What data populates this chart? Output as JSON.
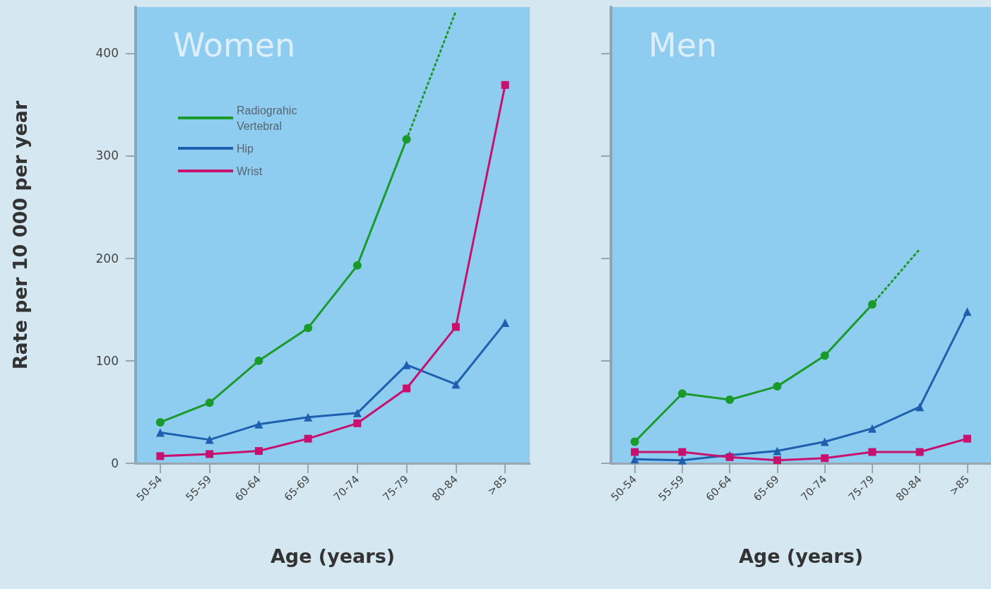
{
  "chart_data": [
    {
      "type": "line",
      "title": "Women",
      "xlabel": "Age (years)",
      "ylabel": "Rate per 10 000 per year",
      "categories": [
        "50-54",
        "55-59",
        "60-64",
        "65-69",
        "70-74",
        "75-79",
        "80-84",
        ">85"
      ],
      "ylim": [
        0,
        445
      ],
      "yticks": [
        0,
        100,
        200,
        300,
        400
      ],
      "grid": false,
      "legend": "top left",
      "line_style": "solid",
      "series": [
        {
          "name": "Radiograhic Vertebral",
          "color": "#1a9a2a",
          "marker": "circle",
          "values": [
            40,
            59,
            100,
            132,
            193,
            316,
            null,
            null
          ]
        },
        {
          "name": "Hip",
          "color": "#1f5fb0",
          "marker": "triangle",
          "values": [
            30,
            23,
            38,
            45,
            49,
            96,
            77,
            137
          ]
        },
        {
          "name": "Wrist",
          "color": "#c8106e",
          "marker": "square",
          "values": [
            7,
            9,
            12,
            24,
            39,
            73,
            133,
            369
          ]
        },
        {
          "color": "#1a9a2a",
          "line_style": "dotted",
          "values": [
            null,
            null,
            null,
            null,
            null,
            316,
            441,
            null
          ]
        }
      ]
    },
    {
      "type": "line",
      "title": "Men",
      "xlabel": "Age (years)",
      "categories": [
        "50-54",
        "55-59",
        "60-64",
        "65-69",
        "70-74",
        "75-79",
        "80-84",
        ">85"
      ],
      "ylim": [
        0,
        445
      ],
      "yticks": [
        {
          "value": 0,
          "label": null
        },
        {
          "value": 100,
          "label": null
        },
        {
          "value": 200,
          "label": null
        },
        {
          "value": 300,
          "label": null
        },
        {
          "value": 400,
          "label": null
        }
      ],
      "grid": false,
      "legend": false,
      "tick_labels": "x",
      "line_style": "solid",
      "series": [
        {
          "color": "#1a9a2a",
          "marker": "circle",
          "values": [
            21,
            68,
            62,
            75,
            105,
            155,
            null,
            null
          ]
        },
        {
          "color": "#1f5fb0",
          "marker": "triangle",
          "values": [
            4,
            3,
            8,
            12,
            21,
            34,
            55,
            148
          ]
        },
        {
          "color": "#c8106e",
          "marker": "square",
          "values": [
            11,
            11,
            6,
            3,
            5,
            11,
            11,
            24
          ]
        },
        {
          "color": "#1a9a2a",
          "line_style": "dotted",
          "values": [
            null,
            null,
            null,
            null,
            null,
            155,
            209,
            null
          ]
        }
      ]
    }
  ]
}
